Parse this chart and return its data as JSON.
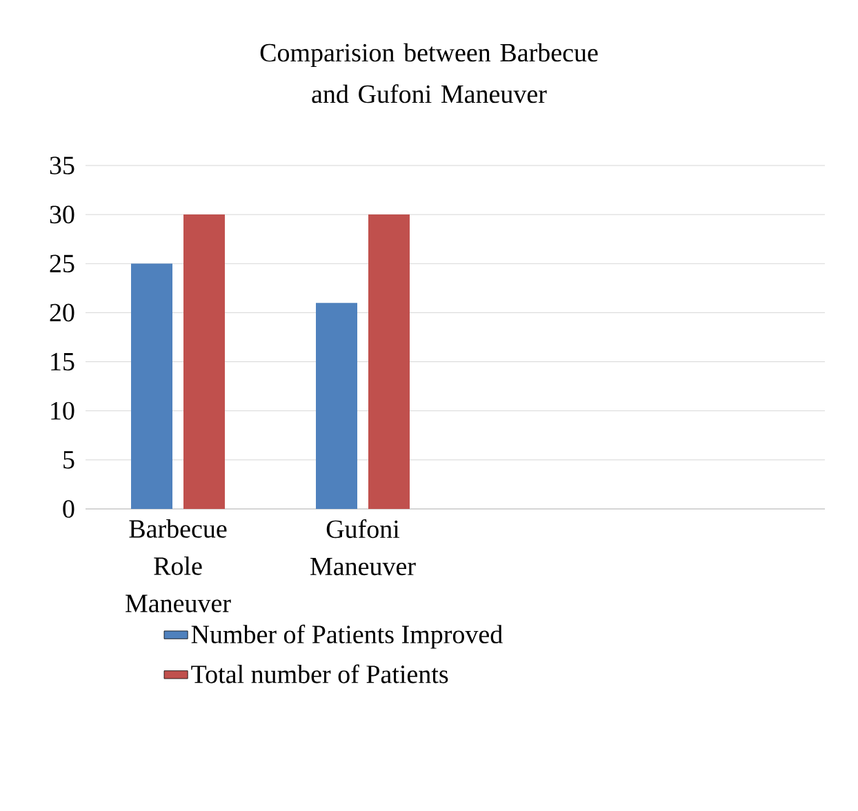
{
  "chart_data": {
    "type": "bar",
    "title": "Comparision between Barbecue and Gufoni Maneuver",
    "categories": [
      "Barbecue Role Maneuver",
      "Gufoni Maneuver",
      null,
      null
    ],
    "series": [
      {
        "name": "Number of Patients Improved",
        "color": "#4f81bd",
        "values": [
          25,
          21,
          null,
          null
        ]
      },
      {
        "name": "Total number of Patients",
        "color": "#c0504d",
        "values": [
          30,
          30,
          null,
          null
        ]
      }
    ],
    "ylim": [
      0,
      35
    ],
    "yticks": [
      0,
      5,
      10,
      15,
      20,
      25,
      30,
      35
    ],
    "grid": "y",
    "legend": "bottom"
  }
}
